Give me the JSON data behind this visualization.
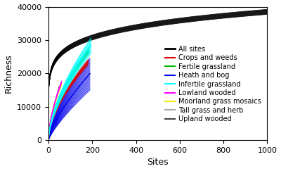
{
  "xlabel": "Sites",
  "ylabel": "Richness",
  "xlim": [
    0,
    1000
  ],
  "ylim": [
    0,
    40000
  ],
  "xticks": [
    0,
    200,
    400,
    600,
    800,
    1000
  ],
  "yticks": [
    0,
    10000,
    20000,
    30000,
    40000
  ],
  "background_color": "#ffffff",
  "plot_bg_color": "#ffffff",
  "legend_fontsize": 7,
  "axis_fontsize": 9,
  "tick_fontsize": 8,
  "all_sites": {
    "label": "All sites",
    "color": "#000000",
    "lw": 2.5,
    "y_at_1000": 38500,
    "y_at_100": 28000,
    "n_band": 20,
    "band_spread": 800
  },
  "habitats": [
    {
      "label": "Infertile grassland",
      "color": "#00ffff",
      "x_max": 195,
      "y_at_max": 28500,
      "y_at_5": 3000,
      "n_band": 18,
      "band_spread": 2500
    },
    {
      "label": "Fertile grassland",
      "color": "#00bb00",
      "x_max": 185,
      "y_at_max": 27000,
      "y_at_5": 3200,
      "n_band": 10,
      "band_spread": 1000
    },
    {
      "label": "Crops and weeds",
      "color": "#dd0000",
      "x_max": 182,
      "y_at_max": 23500,
      "y_at_5": 2800,
      "n_band": 10,
      "band_spread": 1000
    },
    {
      "label": "Lowland wooded",
      "color": "#ff00ff",
      "x_max": 60,
      "y_at_max": 17500,
      "y_at_5": 4000,
      "n_band": 5,
      "band_spread": 500
    },
    {
      "label": "Moorland grass mosaics",
      "color": "#eeee00",
      "x_max": 60,
      "y_at_max": 17000,
      "y_at_5": 3800,
      "n_band": 5,
      "band_spread": 500
    },
    {
      "label": "Tall grass and herb",
      "color": "#aaaaaa",
      "x_max": 55,
      "y_at_max": 16500,
      "y_at_5": 3500,
      "n_band": 5,
      "band_spread": 500
    },
    {
      "label": "Upland wooded",
      "color": "#444444",
      "x_max": 50,
      "y_at_max": 16000,
      "y_at_5": 3200,
      "n_band": 5,
      "band_spread": 500
    },
    {
      "label": "Heath and bog",
      "color": "#0000ee",
      "x_max": 190,
      "y_at_max": 20000,
      "y_at_5": 1500,
      "n_band": 30,
      "band_spread": 5000
    }
  ],
  "legend_order": [
    {
      "label": "All sites",
      "color": "#000000",
      "lw": 2.0
    },
    {
      "label": "Crops and weeds",
      "color": "#dd0000",
      "lw": 1.5
    },
    {
      "label": "Fertile grassland",
      "color": "#00bb00",
      "lw": 1.5
    },
    {
      "label": "Heath and bog",
      "color": "#0000ee",
      "lw": 1.5
    },
    {
      "label": "Infertile grassland",
      "color": "#00ffff",
      "lw": 1.5
    },
    {
      "label": "Lowland wooded",
      "color": "#ff00ff",
      "lw": 1.5
    },
    {
      "label": "Moorland grass mosaics",
      "color": "#eeee00",
      "lw": 1.5
    },
    {
      "label": "Tall grass and herb",
      "color": "#aaaaaa",
      "lw": 1.5
    },
    {
      "label": "Upland wooded",
      "color": "#444444",
      "lw": 1.5
    }
  ]
}
